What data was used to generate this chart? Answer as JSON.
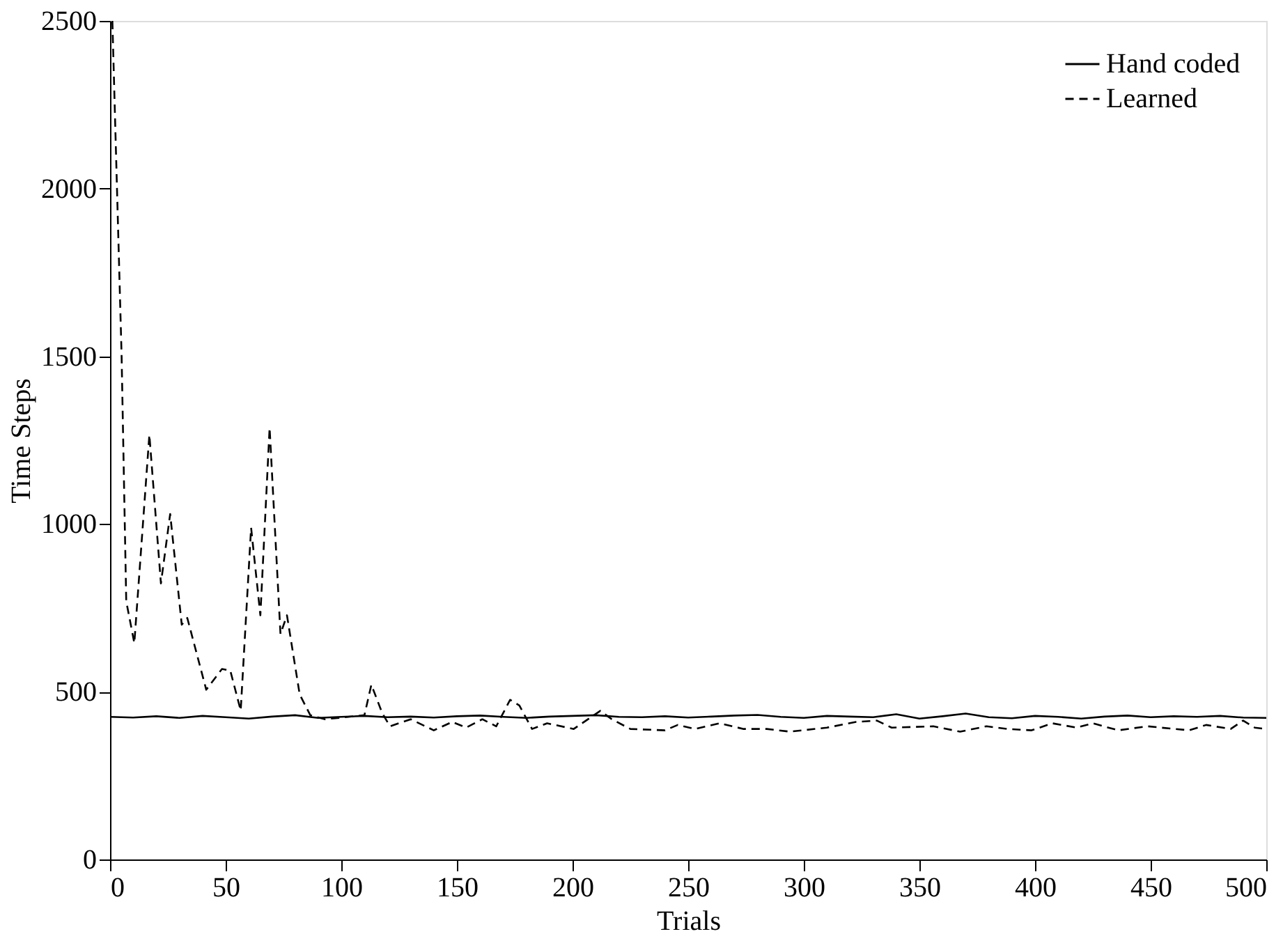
{
  "chart_data": {
    "type": "line",
    "xlabel": "Trials",
    "ylabel": "Time Steps",
    "xlim": [
      0,
      500
    ],
    "xticks": [
      0,
      50,
      100,
      150,
      200,
      250,
      300,
      350,
      400,
      450,
      500
    ],
    "ylim": [
      0,
      2500
    ],
    "yticks": [
      0,
      500,
      1000,
      1500,
      2000,
      2500
    ],
    "grid": false,
    "legend": "top right",
    "marker": "none",
    "series": [
      {
        "name": "Hand coded",
        "color": "#000000",
        "line_style": "solid",
        "x": [
          0,
          10,
          20,
          30,
          40,
          50,
          60,
          70,
          80,
          90,
          100,
          110,
          120,
          130,
          140,
          150,
          160,
          170,
          180,
          190,
          200,
          210,
          220,
          230,
          240,
          250,
          260,
          270,
          280,
          290,
          300,
          310,
          320,
          330,
          340,
          350,
          360,
          370,
          380,
          390,
          400,
          410,
          420,
          430,
          440,
          450,
          460,
          470,
          480,
          490,
          500
        ],
        "values": [
          425,
          423,
          427,
          422,
          428,
          424,
          420,
          426,
          430,
          422,
          425,
          428,
          424,
          426,
          423,
          427,
          429,
          425,
          422,
          426,
          428,
          430,
          425,
          424,
          427,
          423,
          426,
          429,
          431,
          425,
          422,
          428,
          426,
          424,
          433,
          420,
          427,
          435,
          424,
          421,
          428,
          425,
          420,
          426,
          429,
          424,
          427,
          425,
          428,
          423,
          422
        ]
      },
      {
        "name": "Learned",
        "color": "#000000",
        "line_style": "dashed",
        "x": [
          1,
          5,
          7,
          10.5,
          17,
          22,
          26,
          31,
          33.4,
          41.6,
          48.4,
          52,
          56.5,
          61,
          65,
          69,
          73.7,
          76.5,
          82,
          86.6,
          93,
          110,
          113,
          117.6,
          121,
          130,
          140,
          148,
          154,
          161,
          167,
          173,
          177,
          182.5,
          189,
          200.5,
          212,
          217,
          225,
          240,
          245.5,
          253,
          263.5,
          274,
          284,
          294,
          310,
          322.6,
          331.6,
          338,
          356,
          367.6,
          379,
          388,
          398.5,
          407.5,
          418,
          425,
          436,
          448.6,
          466.6,
          474,
          484.6,
          490,
          495,
          500
        ],
        "values": [
          2500,
          1500,
          770,
          645,
          1266,
          823,
          1030,
          700,
          720,
          506,
          568,
          563,
          444,
          989,
          728,
          1287,
          672,
          728,
          492,
          430,
          418,
          430,
          521,
          438,
          397,
          418,
          385,
          410,
          393,
          418,
          397,
          476,
          459,
          389,
          406,
          389,
          443,
          418,
          389,
          385,
          401,
          389,
          406,
          389,
          389,
          381,
          393,
          410,
          414,
          393,
          397,
          381,
          397,
          389,
          385,
          406,
          393,
          406,
          385,
          397,
          385,
          401,
          389,
          414,
          393,
          389
        ]
      }
    ]
  }
}
